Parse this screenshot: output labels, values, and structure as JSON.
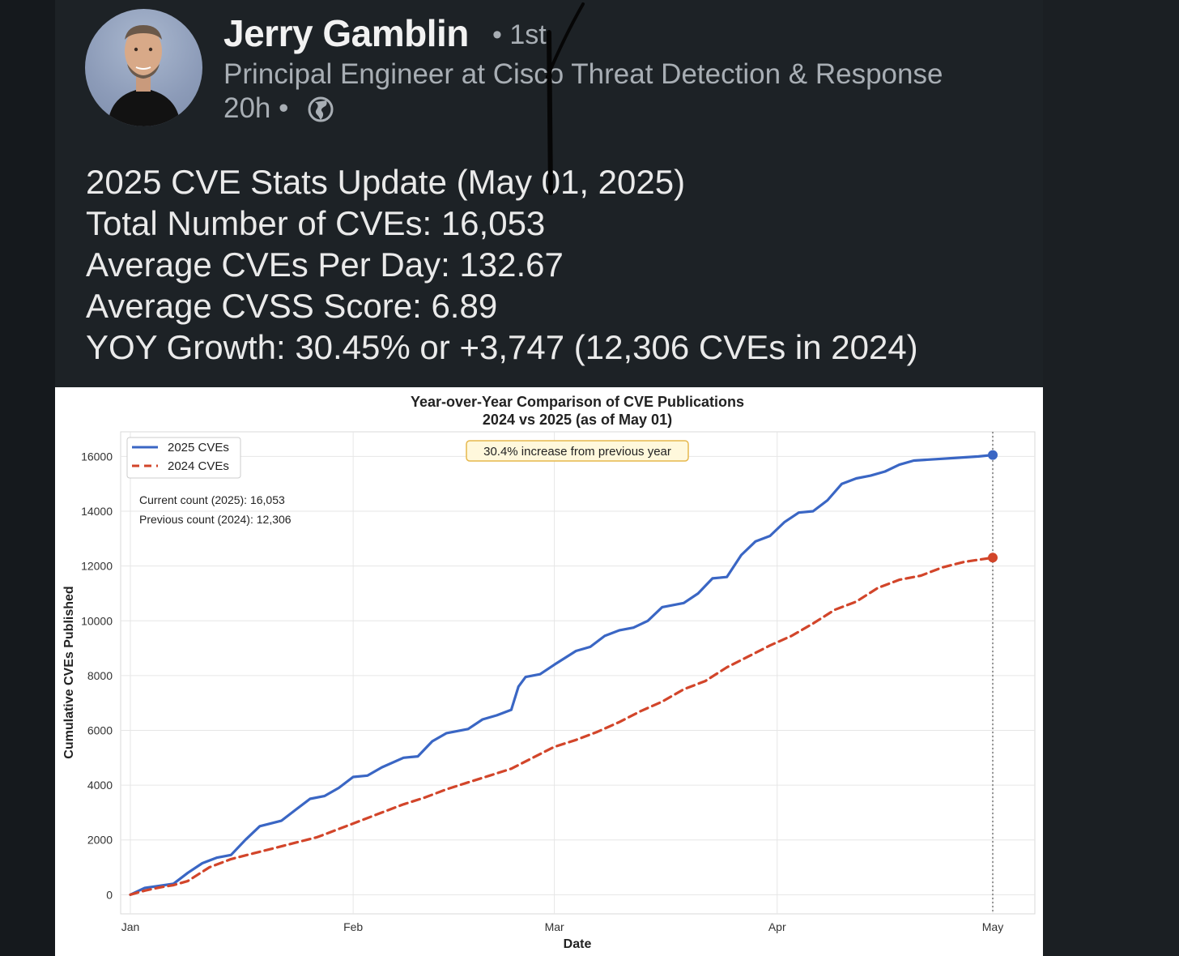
{
  "post": {
    "author": {
      "name": "Jerry Gamblin",
      "degree": "• 1st",
      "headline": "Principal Engineer at Cisco Threat Detection & Response",
      "time": "20h •",
      "visibility_icon": "globe-icon"
    },
    "lines": [
      "2025 CVE Stats Update (May 01, 2025)",
      "Total Number of CVEs: 16,053",
      "Average CVEs Per Day: 132.67",
      "Average CVSS Score: 6.89",
      "YOY Growth: 30.45% or +3,747 (12,306 CVEs in 2024)"
    ]
  },
  "chart_data": {
    "type": "line",
    "title": "Year-over-Year Comparison of CVE Publications",
    "subtitle": "2024 vs 2025 (as of May 01)",
    "xlabel": "Date",
    "ylabel": "Cumulative CVEs Published",
    "xlim": [
      "2025-01-01",
      "2025-05-01"
    ],
    "ylim": [
      -700,
      16900
    ],
    "x_ticks": [
      "Jan",
      "Feb",
      "Mar",
      "Apr",
      "May"
    ],
    "y_ticks": [
      0,
      2000,
      4000,
      6000,
      8000,
      10000,
      12000,
      14000,
      16000
    ],
    "grid": true,
    "legend_position": "top-left",
    "annotation": "30.4% increase from previous year",
    "count_lines": [
      "Current count (2025): 16,053",
      "Previous count (2024): 12,306"
    ],
    "colors": {
      "2025": "#3a66c4",
      "2024": "#d2452a"
    },
    "series": [
      {
        "name": "2025 CVEs",
        "style": "solid",
        "points": [
          [
            "2025-01-01",
            0
          ],
          [
            "2025-01-03",
            250
          ],
          [
            "2025-01-05",
            320
          ],
          [
            "2025-01-07",
            400
          ],
          [
            "2025-01-09",
            800
          ],
          [
            "2025-01-11",
            1150
          ],
          [
            "2025-01-13",
            1350
          ],
          [
            "2025-01-15",
            1450
          ],
          [
            "2025-01-17",
            2000
          ],
          [
            "2025-01-19",
            2500
          ],
          [
            "2025-01-22",
            2700
          ],
          [
            "2025-01-24",
            3100
          ],
          [
            "2025-01-26",
            3500
          ],
          [
            "2025-01-28",
            3600
          ],
          [
            "2025-01-30",
            3900
          ],
          [
            "2025-02-01",
            4300
          ],
          [
            "2025-02-03",
            4350
          ],
          [
            "2025-02-05",
            4650
          ],
          [
            "2025-02-08",
            5000
          ],
          [
            "2025-02-10",
            5050
          ],
          [
            "2025-02-12",
            5600
          ],
          [
            "2025-02-14",
            5900
          ],
          [
            "2025-02-17",
            6050
          ],
          [
            "2025-02-19",
            6400
          ],
          [
            "2025-02-21",
            6550
          ],
          [
            "2025-02-23",
            6750
          ],
          [
            "2025-02-24",
            7600
          ],
          [
            "2025-02-25",
            7950
          ],
          [
            "2025-02-27",
            8050
          ],
          [
            "2025-03-01",
            8400
          ],
          [
            "2025-03-04",
            8900
          ],
          [
            "2025-03-06",
            9050
          ],
          [
            "2025-03-08",
            9450
          ],
          [
            "2025-03-10",
            9650
          ],
          [
            "2025-03-12",
            9750
          ],
          [
            "2025-03-14",
            10000
          ],
          [
            "2025-03-16",
            10500
          ],
          [
            "2025-03-19",
            10650
          ],
          [
            "2025-03-21",
            11000
          ],
          [
            "2025-03-23",
            11550
          ],
          [
            "2025-03-25",
            11600
          ],
          [
            "2025-03-27",
            12400
          ],
          [
            "2025-03-29",
            12900
          ],
          [
            "2025-03-31",
            13100
          ],
          [
            "2025-04-02",
            13600
          ],
          [
            "2025-04-04",
            13950
          ],
          [
            "2025-04-06",
            14000
          ],
          [
            "2025-04-08",
            14400
          ],
          [
            "2025-04-10",
            15000
          ],
          [
            "2025-04-12",
            15200
          ],
          [
            "2025-04-14",
            15300
          ],
          [
            "2025-04-16",
            15450
          ],
          [
            "2025-04-18",
            15700
          ],
          [
            "2025-04-20",
            15850
          ],
          [
            "2025-04-23",
            15900
          ],
          [
            "2025-04-26",
            15950
          ],
          [
            "2025-04-29",
            16000
          ],
          [
            "2025-05-01",
            16053
          ]
        ]
      },
      {
        "name": "2024 CVEs",
        "style": "dashed",
        "points": [
          [
            "2025-01-01",
            0
          ],
          [
            "2025-01-03",
            150
          ],
          [
            "2025-01-05",
            260
          ],
          [
            "2025-01-07",
            350
          ],
          [
            "2025-01-09",
            500
          ],
          [
            "2025-01-12",
            1000
          ],
          [
            "2025-01-15",
            1300
          ],
          [
            "2025-01-18",
            1500
          ],
          [
            "2025-01-21",
            1700
          ],
          [
            "2025-01-24",
            1900
          ],
          [
            "2025-01-27",
            2100
          ],
          [
            "2025-01-30",
            2400
          ],
          [
            "2025-02-02",
            2700
          ],
          [
            "2025-02-05",
            3000
          ],
          [
            "2025-02-08",
            3300
          ],
          [
            "2025-02-11",
            3550
          ],
          [
            "2025-02-14",
            3850
          ],
          [
            "2025-02-17",
            4100
          ],
          [
            "2025-02-20",
            4350
          ],
          [
            "2025-02-23",
            4600
          ],
          [
            "2025-02-26",
            5000
          ],
          [
            "2025-03-01",
            5400
          ],
          [
            "2025-03-04",
            5650
          ],
          [
            "2025-03-07",
            5950
          ],
          [
            "2025-03-10",
            6300
          ],
          [
            "2025-03-13",
            6700
          ],
          [
            "2025-03-16",
            7050
          ],
          [
            "2025-03-19",
            7500
          ],
          [
            "2025-03-22",
            7800
          ],
          [
            "2025-03-25",
            8300
          ],
          [
            "2025-03-28",
            8700
          ],
          [
            "2025-03-31",
            9100
          ],
          [
            "2025-04-03",
            9450
          ],
          [
            "2025-04-06",
            9900
          ],
          [
            "2025-04-09",
            10400
          ],
          [
            "2025-04-12",
            10700
          ],
          [
            "2025-04-15",
            11200
          ],
          [
            "2025-04-18",
            11500
          ],
          [
            "2025-04-21",
            11650
          ],
          [
            "2025-04-24",
            11950
          ],
          [
            "2025-04-27",
            12150
          ],
          [
            "2025-05-01",
            12306
          ]
        ]
      }
    ]
  }
}
